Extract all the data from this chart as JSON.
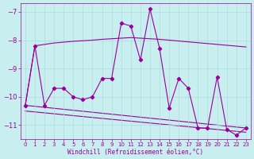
{
  "x": [
    0,
    1,
    2,
    3,
    4,
    5,
    6,
    7,
    8,
    9,
    10,
    11,
    12,
    13,
    14,
    15,
    16,
    17,
    18,
    19,
    20,
    21,
    22,
    23
  ],
  "y_main": [
    -10.3,
    -8.2,
    -10.3,
    -9.7,
    -9.7,
    -10.0,
    -10.1,
    -10.0,
    -9.35,
    -9.35,
    -7.4,
    -7.5,
    -8.7,
    -6.9,
    -8.3,
    -10.4,
    -9.35,
    -9.7,
    -11.1,
    -11.1,
    -9.3,
    -11.15,
    -11.35,
    -11.1
  ],
  "y_smooth": [
    -10.3,
    -8.2,
    -8.15,
    -8.1,
    -8.07,
    -8.04,
    -8.02,
    -8.0,
    -7.97,
    -7.95,
    -7.93,
    -7.91,
    -7.93,
    -7.95,
    -7.97,
    -8.0,
    -8.03,
    -8.06,
    -8.09,
    -8.12,
    -8.15,
    -8.18,
    -8.21,
    -8.24
  ],
  "trend1_x": [
    0,
    23
  ],
  "trend1_y": [
    -10.3,
    -11.1
  ],
  "trend2_x": [
    0,
    23
  ],
  "trend2_y": [
    -10.5,
    -11.25
  ],
  "xlabel": "Windchill (Refroidissement éolien,°C)",
  "bg_color": "#c8eef0",
  "line_color": "#990099",
  "grid_color": "#aadddd",
  "ylim": [
    -11.5,
    -6.7
  ],
  "xlim": [
    -0.5,
    23.5
  ],
  "yticks": [
    -11,
    -10,
    -9,
    -8,
    -7
  ],
  "xticks": [
    0,
    1,
    2,
    3,
    4,
    5,
    6,
    7,
    8,
    9,
    10,
    11,
    12,
    13,
    14,
    15,
    16,
    17,
    18,
    19,
    20,
    21,
    22,
    23
  ]
}
